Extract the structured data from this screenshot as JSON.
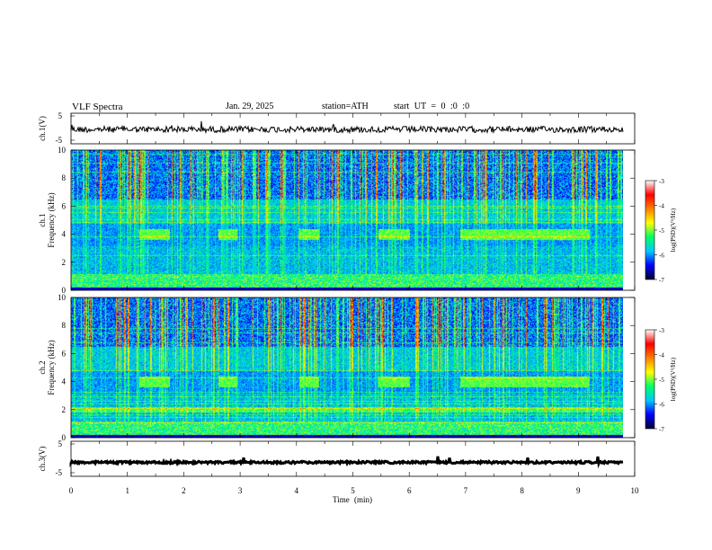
{
  "header": {
    "title": "VLF Spectra",
    "date": "Jan. 29, 2025",
    "station": "station=ATH",
    "start": "start UT = 0 :0 :0"
  },
  "colors": {
    "colormap": [
      "#00002a",
      "#0000ff",
      "#00c8ff",
      "#00ff66",
      "#ffff00",
      "#ff8000",
      "#ff0000",
      "#ffffff"
    ],
    "trace": "#000000"
  },
  "chart_data": [
    {
      "type": "line",
      "name": "ch1-waveform",
      "ylabel": "ch.1(V)",
      "yticks": [
        "5",
        "-5"
      ],
      "ylim": [
        -5,
        5
      ],
      "xlim": [
        0,
        10
      ]
    },
    {
      "type": "heatmap",
      "name": "ch1-spectrogram",
      "ylabel": "ch.1\nFrequency (kHz)",
      "ylabel_line1": "ch.1",
      "ylabel_line2": "Frequency (kHz)",
      "yticks": [
        "0",
        "2",
        "4",
        "6",
        "8",
        "10"
      ],
      "ylim": [
        0,
        10
      ],
      "xlim": [
        0,
        9.8
      ],
      "colorbar": {
        "label": "log(PSD)(V²/Hz)",
        "ticks": [
          "-3",
          "-4",
          "-5",
          "-6",
          "-7"
        ],
        "range": [
          -7,
          -3
        ]
      }
    },
    {
      "type": "heatmap",
      "name": "ch2-spectrogram",
      "ylabel_line1": "ch.2",
      "ylabel_line2": "Frequency (kHz)",
      "yticks": [
        "0",
        "2",
        "4",
        "6",
        "8",
        "10"
      ],
      "ylim": [
        0,
        10
      ],
      "xlim": [
        0,
        9.8
      ],
      "colorbar": {
        "label": "log(PSD)(V²/Hz)",
        "ticks": [
          "-3",
          "-4",
          "-5",
          "-6",
          "-7"
        ],
        "range": [
          -7,
          -3
        ]
      }
    },
    {
      "type": "line",
      "name": "ch3-waveform",
      "ylabel": "ch.3(V)",
      "yticks": [
        "5",
        "-5"
      ],
      "ylim": [
        -5,
        5
      ],
      "xlim": [
        0,
        10
      ],
      "xlabel": "Time (min)",
      "xticks": [
        "0",
        "1",
        "2",
        "3",
        "4",
        "5",
        "6",
        "7",
        "8",
        "9",
        "10"
      ]
    }
  ],
  "bursts_4khz_min": [
    [
      1.2,
      1.75
    ],
    [
      2.6,
      2.95
    ],
    [
      4.05,
      4.4
    ],
    [
      5.45,
      6.0
    ],
    [
      6.9,
      9.2
    ]
  ]
}
